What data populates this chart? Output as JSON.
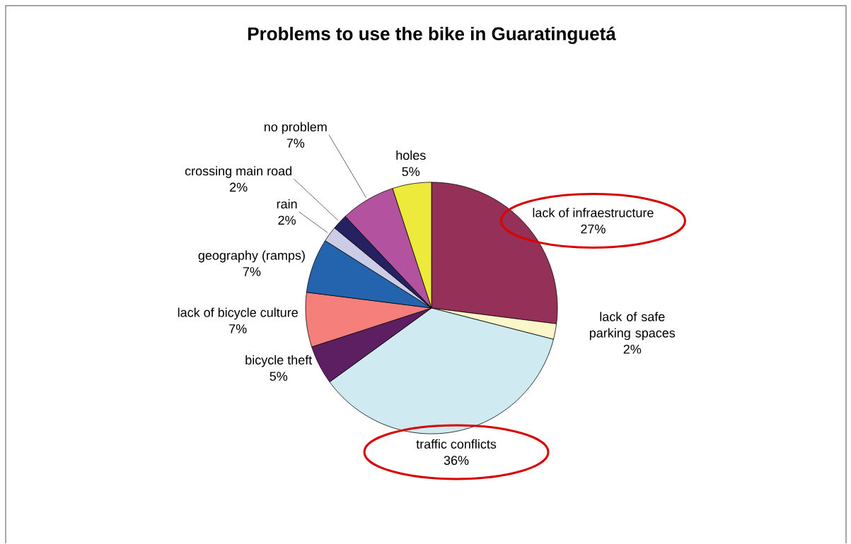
{
  "chart_data": {
    "type": "pie",
    "title": "Problems to use the bike in Guaratinguetá",
    "categories": [
      "lack of infraestructure",
      "lack of safe parking spaces",
      "traffic conflicts",
      "bicycle theft",
      "lack of bicycle culture",
      "geography (ramps)",
      "rain",
      "crossing main road",
      "no problem",
      "holes"
    ],
    "values": [
      27,
      2,
      36,
      5,
      7,
      7,
      2,
      2,
      7,
      5
    ],
    "value_labels": [
      "27%",
      "2%",
      "36%",
      "5%",
      "7%",
      "7%",
      "2%",
      "2%",
      "7%",
      "5%"
    ],
    "colors": [
      "#953159",
      "#fbf7c9",
      "#cfeaf0",
      "#5e1f62",
      "#f47f7b",
      "#2463ae",
      "#cccce6",
      "#262262",
      "#b3529e",
      "#eeea3c"
    ]
  }
}
